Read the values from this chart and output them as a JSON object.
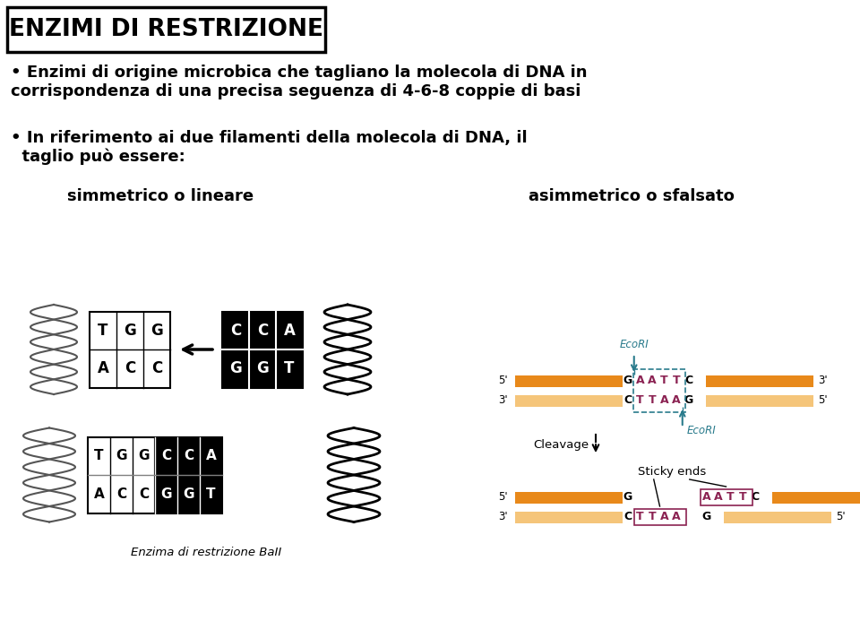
{
  "title": "ENZIMI DI RESTRIZIONE",
  "bullet1_line1": "• Enzimi di origine microbica che tagliano la molecola di DNA in",
  "bullet1_line2": "corrispondenza di una precisa seguenza di 4-6-8 coppie di basi",
  "bullet2_line1": "• In riferimento ai due filamenti della molecola di DNA, il",
  "bullet2_line2": "  taglio può essere:",
  "label_left": "simmetrico o lineare",
  "label_right": "asimmetrico o sfalsato",
  "caption_bottom": "Enzima di restrizione BaII",
  "ecori_label": "EcoRI",
  "cleavage_label": "Cleavage",
  "sticky_ends_label": "Sticky ends",
  "orange_dark": "#E8891A",
  "orange_light": "#F5C57A",
  "teal": "#2A7B8C",
  "purple": "#8B2252",
  "bg_color": "#FFFFFF",
  "top_dna_top_letters": [
    "T",
    "G",
    "G"
  ],
  "top_dna_bot_letters": [
    "A",
    "C",
    "C"
  ],
  "right_black_top": [
    "C",
    "C",
    "A"
  ],
  "right_black_bot": [
    "G",
    "G",
    "T"
  ],
  "bot_dna_top": [
    "T",
    "G",
    "G",
    "C",
    "C",
    "A"
  ],
  "bot_dna_bot": [
    "A",
    "C",
    "C",
    "G",
    "G",
    "T"
  ]
}
